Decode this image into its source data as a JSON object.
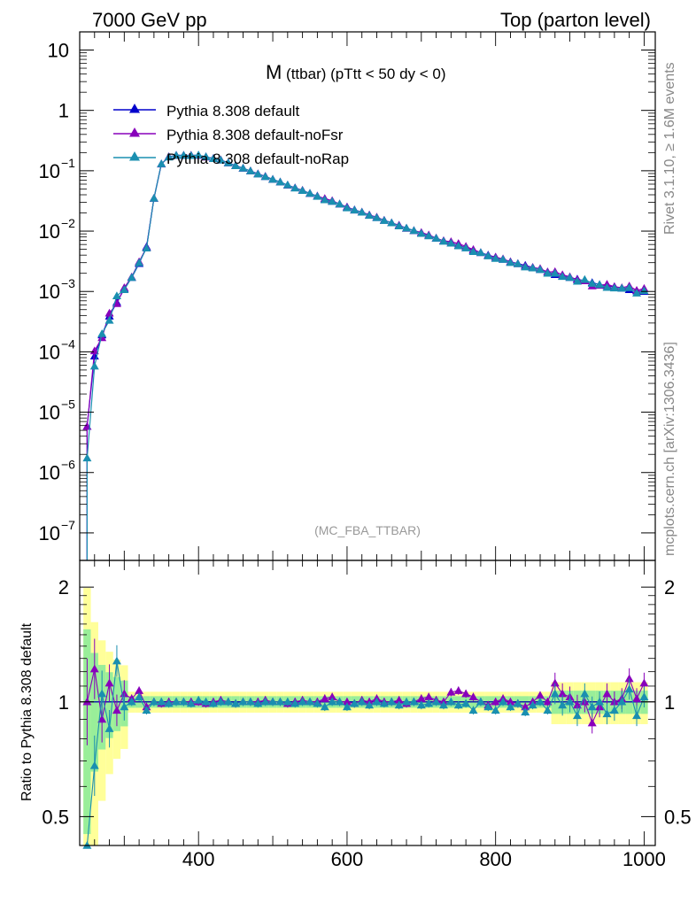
{
  "header": {
    "left": "7000 GeV pp",
    "right": "Top (parton level)"
  },
  "side_labels": {
    "rivet": "Rivet 3.1.10, ≥ 1.6M events",
    "mcplots": "mcplots.cern.ch [arXiv:1306.3436]"
  },
  "chart_data": {
    "type": "line",
    "title_main": "M",
    "title_rest": " (ttbar) (pTtt < 50 dy < 0)",
    "watermark": "(MC_FBA_TTBAR)",
    "x_ticks": [
      "400",
      "600",
      "800",
      "1000"
    ],
    "x_range": [
      240,
      1015
    ],
    "main_panel": {
      "ylabel": "",
      "yscale": "log",
      "y_range": [
        3.5e-08,
        20
      ],
      "y_ticks": [
        {
          "value": 10,
          "mant": "10",
          "exp": ""
        },
        {
          "value": 1,
          "mant": "1",
          "exp": ""
        },
        {
          "value": 0.1,
          "mant": "10",
          "exp": "−1"
        },
        {
          "value": 0.01,
          "mant": "10",
          "exp": "−2"
        },
        {
          "value": 0.001,
          "mant": "10",
          "exp": "−3"
        },
        {
          "value": 0.0001,
          "mant": "10",
          "exp": "−4"
        },
        {
          "value": 1e-05,
          "mant": "10",
          "exp": "−5"
        },
        {
          "value": 1e-06,
          "mant": "10",
          "exp": "−6"
        },
        {
          "value": 1e-07,
          "mant": "10",
          "exp": "−7"
        }
      ],
      "reference_x": [
        250,
        260,
        270,
        280,
        290,
        300,
        310,
        320,
        330,
        340,
        350,
        360,
        370,
        380,
        390,
        400,
        410,
        420,
        430,
        440,
        450,
        460,
        470,
        480,
        490,
        500,
        510,
        520,
        530,
        540,
        550,
        560,
        570,
        580,
        590,
        600,
        610,
        620,
        630,
        640,
        650,
        660,
        670,
        680,
        690,
        700,
        710,
        720,
        730,
        740,
        750,
        760,
        770,
        780,
        790,
        800,
        810,
        820,
        830,
        840,
        850,
        860,
        870,
        880,
        890,
        900,
        910,
        920,
        930,
        940,
        950,
        960,
        970,
        980,
        990,
        1000
      ],
      "reference_y": [
        5.8e-06,
        8.5e-05,
        0.00019,
        0.00039,
        0.00066,
        0.0011,
        0.0017,
        0.0029,
        0.0055,
        0.035,
        0.13,
        0.17,
        0.18,
        0.18,
        0.18,
        0.18,
        0.17,
        0.16,
        0.15,
        0.135,
        0.122,
        0.11,
        0.099,
        0.089,
        0.08,
        0.072,
        0.065,
        0.058,
        0.052,
        0.047,
        0.042,
        0.038,
        0.034,
        0.031,
        0.028,
        0.025,
        0.0225,
        0.0205,
        0.0185,
        0.0167,
        0.0151,
        0.0137,
        0.0124,
        0.0112,
        0.0102,
        0.0093,
        0.0084,
        0.0076,
        0.0069,
        0.0063,
        0.0058,
        0.0053,
        0.0048,
        0.0044,
        0.004,
        0.0037,
        0.0034,
        0.0031,
        0.0029,
        0.0027,
        0.0025,
        0.0023,
        0.0021,
        0.0019,
        0.0018,
        0.0017,
        0.0016,
        0.0015,
        0.0014,
        0.0013,
        0.00125,
        0.0012,
        0.00113,
        0.00107,
        0.00102,
        0.001
      ]
    },
    "ratio_panel": {
      "ylabel": "Ratio to Pythia 8.308 default",
      "yscale": "log",
      "y_range": [
        0.42,
        2.35
      ],
      "y_ticks": [
        "2",
        "1",
        "0.5"
      ],
      "y_tick_values": [
        2,
        1,
        0.5
      ]
    },
    "series": [
      {
        "name": "Pythia 8.308 default",
        "color": "#0000cc",
        "ratio": [
          1,
          1,
          1,
          1,
          1,
          1,
          1,
          1,
          1,
          1,
          1,
          1,
          1,
          1,
          1,
          1,
          1,
          1,
          1,
          1,
          1,
          1,
          1,
          1,
          1,
          1,
          1,
          1,
          1,
          1,
          1,
          1,
          1,
          1,
          1,
          1,
          1,
          1,
          1,
          1,
          1,
          1,
          1,
          1,
          1,
          1,
          1,
          1,
          1,
          1,
          1,
          1,
          1,
          1,
          1,
          1,
          1,
          1,
          1,
          1,
          1,
          1,
          1,
          1,
          1,
          1,
          1,
          1,
          1,
          1,
          1,
          1,
          1,
          1,
          1,
          1
        ]
      },
      {
        "name": "Pythia 8.308 default-noFsr",
        "color": "#8800bb",
        "ratio": [
          1,
          1.22,
          0.9,
          1.12,
          0.95,
          1.05,
          1.02,
          1.07,
          0.97,
          1.0,
          0.99,
          1.0,
          1.0,
          1.0,
          1.0,
          1.0,
          0.99,
          1.0,
          1.01,
          1.0,
          0.99,
          1.0,
          1.0,
          1.0,
          1.01,
          1.0,
          1.0,
          0.99,
          1.0,
          1.01,
          1.0,
          1.0,
          1.02,
          1.03,
          1.0,
          1.0,
          0.99,
          1.01,
          1.0,
          1.02,
          1.0,
          1.0,
          1.01,
          0.99,
          1.0,
          1.02,
          1.03,
          1.01,
          1.0,
          1.06,
          1.07,
          1.05,
          1.03,
          1.0,
          0.98,
          1.0,
          1.02,
          1.0,
          0.99,
          0.97,
          1.0,
          1.04,
          1.0,
          1.12,
          1.05,
          1.03,
          0.98,
          1.0,
          0.88,
          0.97,
          1.05,
          1.0,
          1.02,
          1.15,
          1.02,
          1.12
        ]
      },
      {
        "name": "Pythia 8.308 default-noRap",
        "color": "#1a8fb0",
        "ratio": [
          0.3,
          0.68,
          1.05,
          0.85,
          1.28,
          0.97,
          1.0,
          1.03,
          0.95,
          1.0,
          1.0,
          0.99,
          1.0,
          1.0,
          0.99,
          1.01,
          1.0,
          0.99,
          1.0,
          1.0,
          0.99,
          1.0,
          1.0,
          0.99,
          1.0,
          1.0,
          1.0,
          1.0,
          0.99,
          1.0,
          1.0,
          0.99,
          0.97,
          1.0,
          1.0,
          0.97,
          0.99,
          1.0,
          0.98,
          1.0,
          0.99,
          1.0,
          0.98,
          1.0,
          1.0,
          0.98,
          0.99,
          1.0,
          0.98,
          1.0,
          0.98,
          0.99,
          0.95,
          1.0,
          0.97,
          0.95,
          1.0,
          0.97,
          0.99,
          0.94,
          0.98,
          1.0,
          0.95,
          1.05,
          0.98,
          1.0,
          0.92,
          1.05,
          0.97,
          1.0,
          0.93,
          0.95,
          1.0,
          1.08,
          0.92,
          1.03
        ]
      }
    ],
    "legend_placement": "top-left",
    "grid": false
  }
}
